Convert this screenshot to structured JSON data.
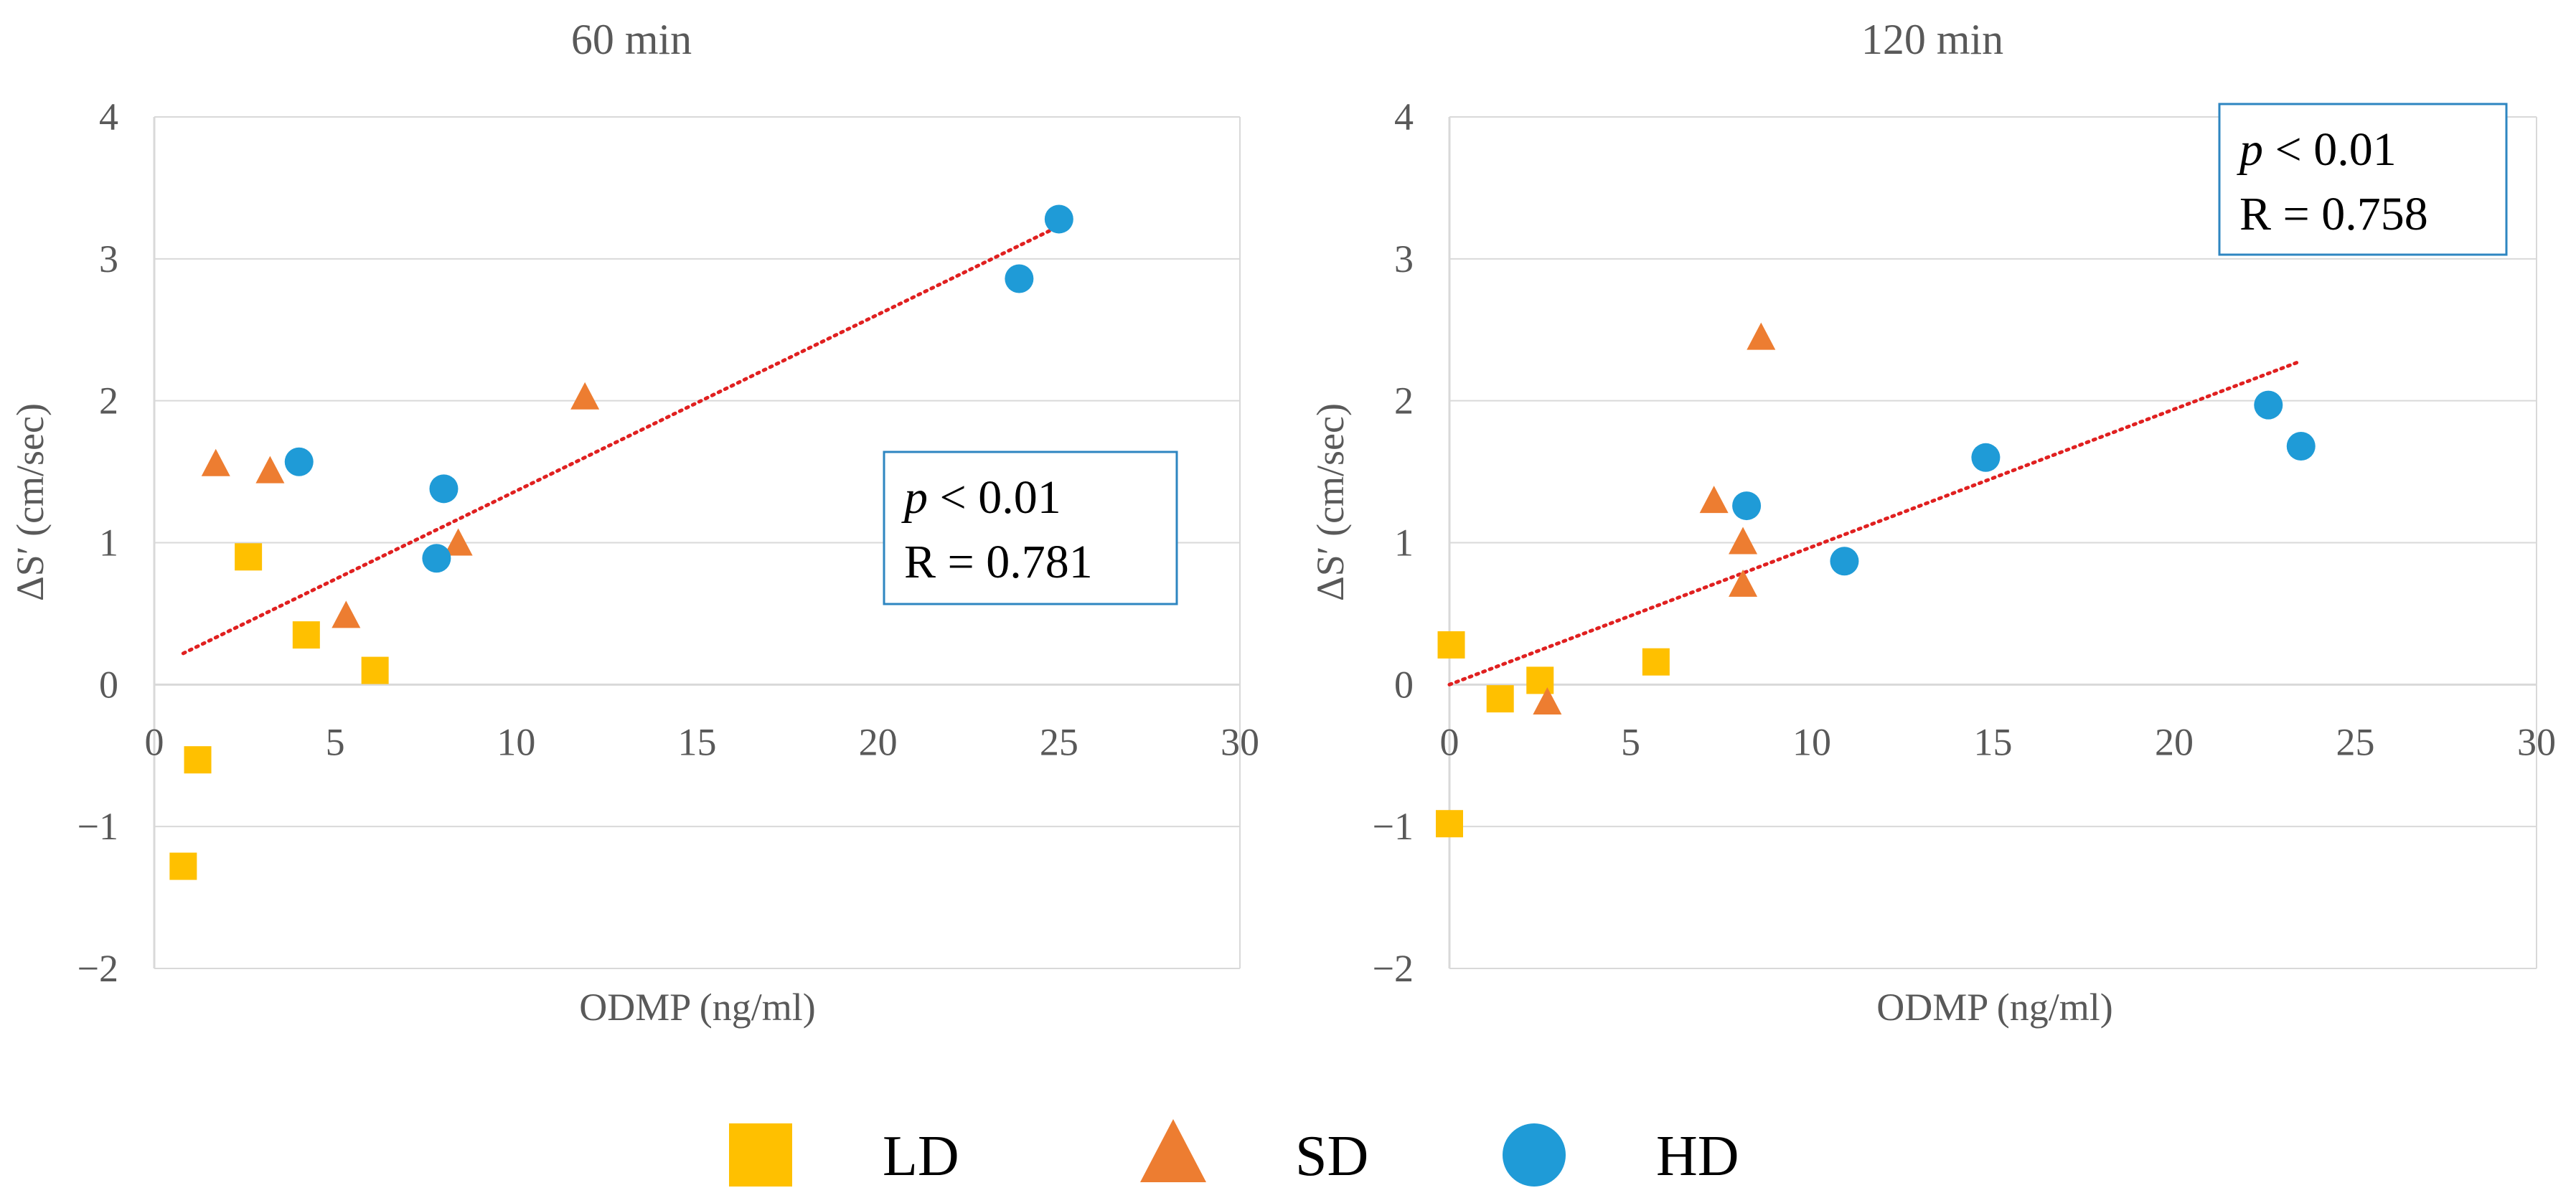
{
  "colors": {
    "LD": "#FFC000",
    "SD": "#ED7D31",
    "HD": "#1F9BD7",
    "trend": "#E02020",
    "grid": "#D9D9D9",
    "box": "#2E86C1"
  },
  "legend": [
    {
      "key": "LD",
      "label": "LD",
      "marker": "square"
    },
    {
      "key": "SD",
      "label": "SD",
      "marker": "triangle"
    },
    {
      "key": "HD",
      "label": "HD",
      "marker": "circle"
    }
  ],
  "chart_data": [
    {
      "type": "scatter",
      "title": "60 min",
      "xlabel": "ODMP (ng/ml)",
      "ylabel": "ΔS′ (cm/sec)",
      "xlim": [
        0,
        30
      ],
      "ylim": [
        -2,
        4
      ],
      "xticks": [
        "0",
        "5",
        "10",
        "15",
        "20",
        "25",
        "30"
      ],
      "yticks": [
        "−2",
        "−1",
        "0",
        "1",
        "2",
        "3",
        "4"
      ],
      "stat_p_italic": "p",
      "stat_p_rest": " < 0.01",
      "stat_r": "R = 0.781",
      "series": [
        {
          "name": "LD",
          "points": [
            [
              0.8,
              -1.28
            ],
            [
              1.2,
              -0.53
            ],
            [
              2.6,
              0.9
            ],
            [
              4.2,
              0.35
            ],
            [
              6.1,
              0.1
            ]
          ]
        },
        {
          "name": "SD",
          "points": [
            [
              1.7,
              1.55
            ],
            [
              3.2,
              1.5
            ],
            [
              5.3,
              0.48
            ],
            [
              8.4,
              0.99
            ],
            [
              11.9,
              2.02
            ]
          ]
        },
        {
          "name": "HD",
          "points": [
            [
              4.0,
              1.57
            ],
            [
              7.8,
              0.89
            ],
            [
              8.0,
              1.38
            ],
            [
              23.9,
              2.86
            ],
            [
              25.0,
              3.28
            ]
          ]
        }
      ],
      "trendline": {
        "x": [
          0.8,
          25.0
        ],
        "y": [
          0.22,
          3.23
        ]
      }
    },
    {
      "type": "scatter",
      "title": "120 min",
      "xlabel": "ODMP (ng/ml)",
      "ylabel": "ΔS′ (cm/sec)",
      "xlim": [
        0,
        30
      ],
      "ylim": [
        -2,
        4
      ],
      "xticks": [
        "0",
        "5",
        "10",
        "15",
        "20",
        "25",
        "30"
      ],
      "yticks": [
        "−2",
        "−1",
        "0",
        "1",
        "2",
        "3",
        "4"
      ],
      "stat_p_italic": "p",
      "stat_p_rest": " < 0.01",
      "stat_r": "R = 0.758",
      "series": [
        {
          "name": "LD",
          "points": [
            [
              0.0,
              -0.98
            ],
            [
              0.05,
              0.28
            ],
            [
              1.4,
              -0.1
            ],
            [
              2.5,
              0.03
            ],
            [
              5.7,
              0.16
            ]
          ]
        },
        {
          "name": "SD",
          "points": [
            [
              2.7,
              -0.13
            ],
            [
              7.3,
              1.29
            ],
            [
              8.1,
              1.0
            ],
            [
              8.1,
              0.7
            ],
            [
              8.6,
              2.44
            ]
          ]
        },
        {
          "name": "HD",
          "points": [
            [
              8.2,
              1.26
            ],
            [
              10.9,
              0.87
            ],
            [
              14.8,
              1.6
            ],
            [
              22.6,
              1.97
            ],
            [
              23.5,
              1.68
            ]
          ]
        }
      ],
      "trendline": {
        "x": [
          0.0,
          23.5
        ],
        "y": [
          0.0,
          2.28
        ]
      }
    }
  ]
}
